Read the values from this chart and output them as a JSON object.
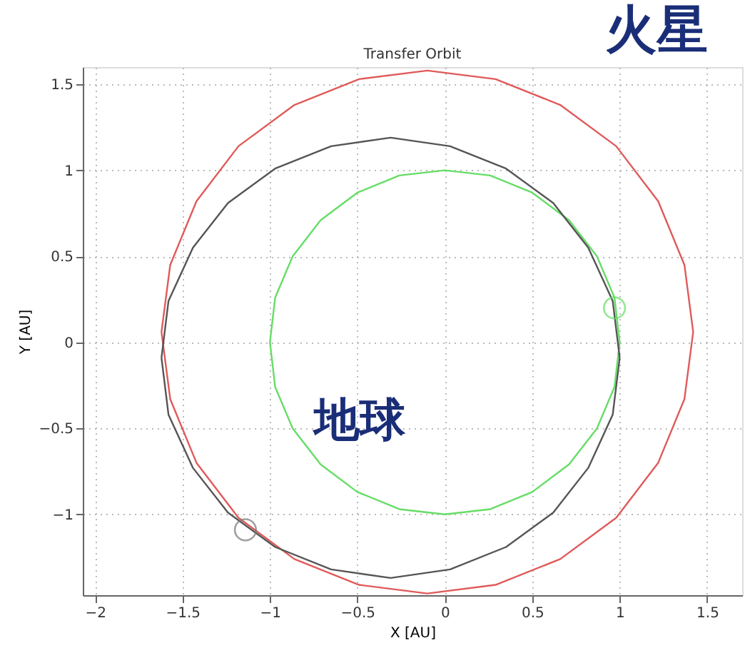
{
  "chart_data": {
    "type": "line",
    "title": "Transfer Orbit",
    "xlabel": "X [AU]",
    "ylabel": "Y [AU]",
    "xlim": [
      -2.07,
      1.7
    ],
    "ylim": [
      -1.47,
      1.6
    ],
    "xticks": [
      {
        "value": -2,
        "label": "−2"
      },
      -1.5,
      {
        "value": -1,
        "label": "−1"
      },
      -0.5,
      {
        "value": 0,
        "label": "0"
      },
      0.5,
      {
        "value": 1,
        "label": "1"
      },
      1.5
    ],
    "yticks": [
      {
        "value": -1,
        "label": "−1"
      },
      -0.5,
      {
        "value": 0,
        "label": "0"
      },
      0.5,
      {
        "value": 1,
        "label": "1"
      },
      1.5
    ],
    "grid": true,
    "legend": false,
    "line_style": "solid",
    "marker": "none",
    "annotations": [
      "火星",
      "地球"
    ],
    "series": [
      {
        "color": "#e05a5a",
        "x": [
          1.42,
          1.37,
          1.22,
          0.98,
          0.66,
          0.29,
          -0.1,
          -0.49,
          -0.86,
          -1.18,
          -1.42,
          -1.57,
          -1.62,
          null,
          -1.62,
          -1.57,
          -1.42,
          -1.18,
          -0.86,
          -0.49,
          -0.1,
          0.29,
          0.66,
          0.98,
          1.22,
          1.37,
          1.42
        ],
        "values": [
          0.06,
          0.45,
          0.82,
          1.14,
          1.38,
          1.53,
          1.58,
          1.53,
          1.38,
          1.14,
          0.82,
          0.45,
          0.06,
          null,
          0.06,
          -0.33,
          -0.7,
          -1.02,
          -1.26,
          -1.41,
          -1.46,
          -1.41,
          -1.26,
          -1.02,
          -0.7,
          -0.33,
          0.06
        ]
      },
      {
        "color": "#66dd66",
        "x": [
          1,
          0.97,
          0.87,
          0.71,
          0.5,
          0.26,
          0,
          -0.26,
          -0.5,
          -0.71,
          -0.87,
          -0.97,
          -1,
          null,
          -1,
          -0.97,
          -0.87,
          -0.71,
          -0.5,
          -0.26,
          0,
          0.26,
          0.5,
          0.71,
          0.87,
          0.97,
          1
        ],
        "values": [
          0,
          0.26,
          0.5,
          0.71,
          0.87,
          0.97,
          1,
          0.97,
          0.87,
          0.71,
          0.5,
          0.26,
          0,
          null,
          0,
          -0.26,
          -0.5,
          -0.71,
          -0.87,
          -0.97,
          -1,
          -0.97,
          -0.87,
          -0.71,
          -0.5,
          -0.26,
          0
        ]
      },
      {
        "color": "#555555",
        "x": [
          1.0,
          0.96,
          0.82,
          0.62,
          0.35,
          0.03,
          -0.31,
          -0.65,
          -0.97,
          -1.24,
          -1.44,
          -1.58,
          -1.62,
          null,
          -1.62,
          -1.58,
          -1.44,
          -1.24,
          -0.97,
          -0.65,
          -0.31,
          0.03,
          0.35,
          0.62,
          0.82,
          0.96,
          1.0
        ],
        "values": [
          -0.09,
          0.24,
          0.55,
          0.81,
          1.01,
          1.14,
          1.19,
          1.14,
          1.01,
          0.81,
          0.55,
          0.24,
          -0.09,
          null,
          -0.09,
          -0.42,
          -0.73,
          -0.99,
          -1.19,
          -1.32,
          -1.37,
          -1.32,
          -1.19,
          -0.99,
          -0.73,
          -0.42,
          -0.09
        ]
      },
      {
        "type": "scatter",
        "marker": "circle",
        "color": "#66dd66",
        "x": [
          0.97
        ],
        "values": [
          0.2
        ]
      },
      {
        "type": "scatter",
        "marker": "circle",
        "color": "#777777",
        "x": [
          -1.14
        ],
        "values": [
          -1.09
        ]
      }
    ]
  }
}
